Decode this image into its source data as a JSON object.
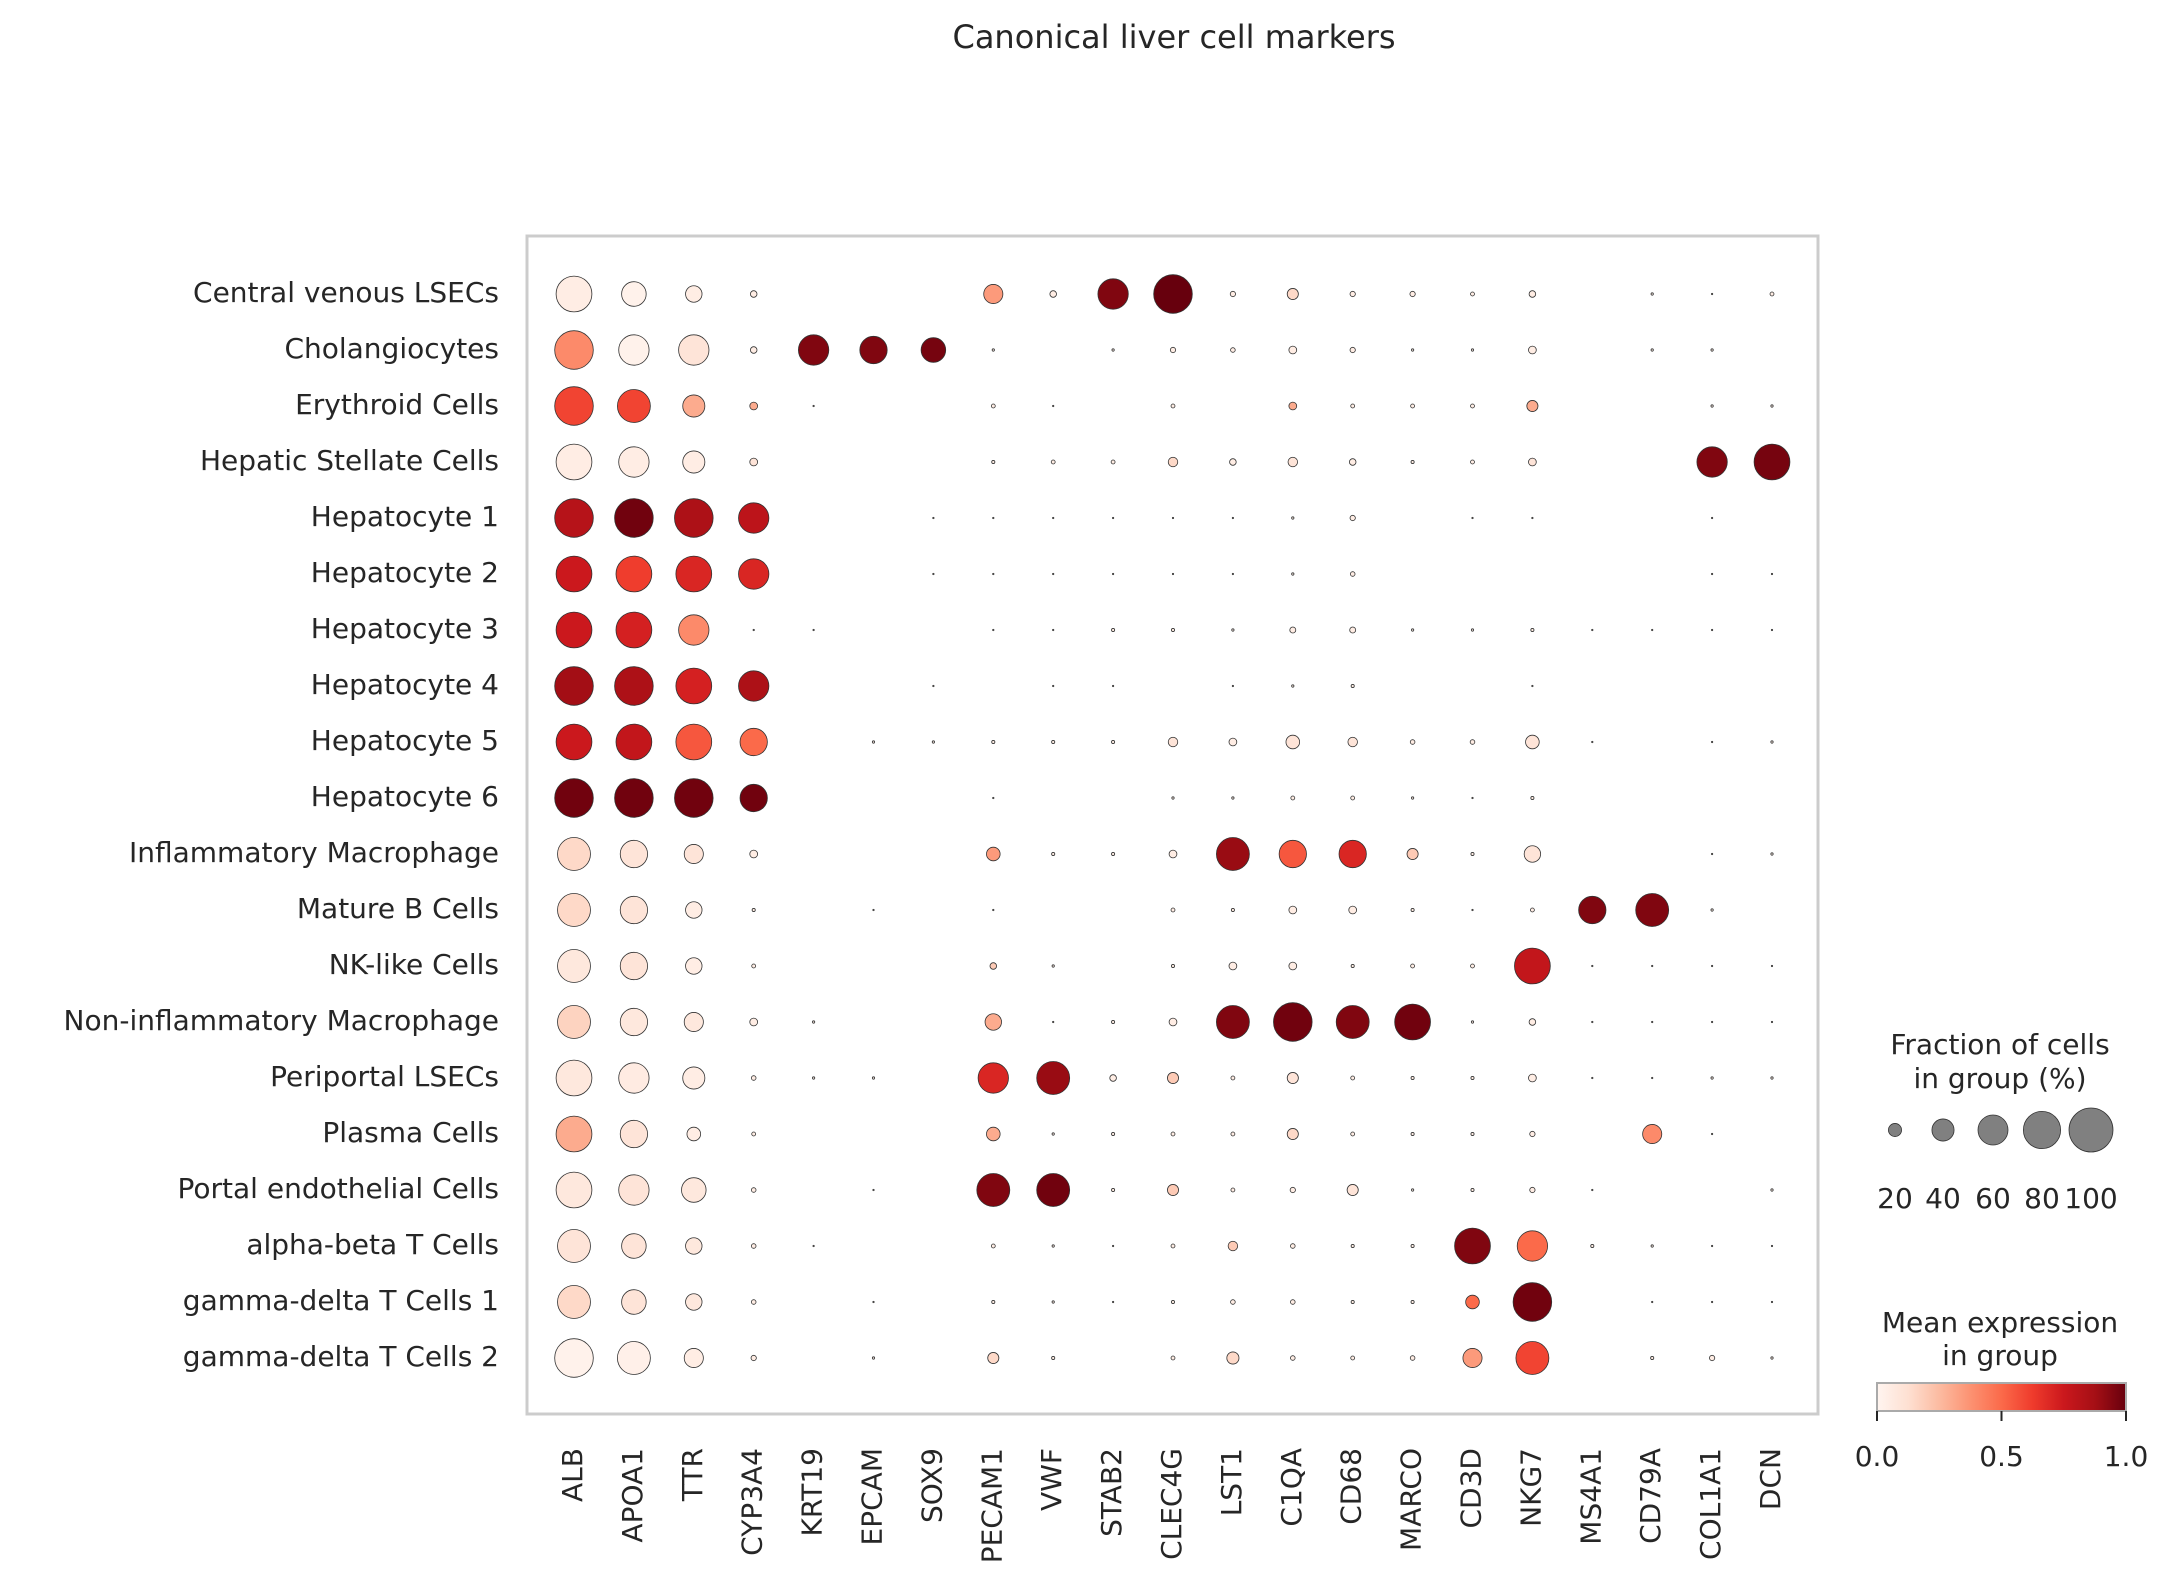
{
  "chart_data": {
    "type": "dot",
    "title": "Canonical liver cell markers",
    "genes": [
      "ALB",
      "APOA1",
      "TTR",
      "CYP3A4",
      "KRT19",
      "EPCAM",
      "SOX9",
      "PECAM1",
      "VWF",
      "STAB2",
      "CLEC4G",
      "LST1",
      "C1QA",
      "CD68",
      "MARCO",
      "CD3D",
      "NKG7",
      "MS4A1",
      "CD79A",
      "COL1A1",
      "DCN"
    ],
    "groups": [
      "Central venous LSECs",
      "Cholangiocytes",
      "Erythroid Cells",
      "Hepatic Stellate Cells",
      "Hepatocyte 1",
      "Hepatocyte 2",
      "Hepatocyte 3",
      "Hepatocyte 4",
      "Hepatocyte 5",
      "Hepatocyte 6",
      "Inflammatory Macrophage",
      "Mature B Cells",
      "NK-like Cells",
      "Non-inflammatory Macrophage",
      "Periportal LSECs",
      "Plasma Cells",
      "Portal endothelial Cells",
      "alpha-beta T Cells",
      "gamma-delta T Cells 1",
      "gamma-delta T Cells 2"
    ],
    "fraction": [
      [
        76,
        46,
        27,
        8,
        0,
        0,
        0,
        33,
        8,
        61,
        84,
        6,
        16,
        6,
        6,
        4,
        8,
        0,
        2,
        1,
        4
      ],
      [
        84,
        61,
        61,
        8,
        61,
        53,
        46,
        2,
        0,
        2,
        6,
        5,
        10,
        6,
        2,
        2,
        10,
        0,
        2,
        2,
        0
      ],
      [
        84,
        68,
        40,
        10,
        1,
        0,
        0,
        4,
        1,
        0,
        4,
        0,
        10,
        4,
        4,
        4,
        16,
        0,
        0,
        2,
        2
      ],
      [
        76,
        61,
        40,
        10,
        0,
        0,
        0,
        3,
        4,
        4,
        13,
        8,
        13,
        8,
        3,
        4,
        10,
        0,
        0,
        61,
        76
      ],
      [
        84,
        84,
        84,
        61,
        0,
        0,
        1,
        1,
        1,
        1,
        1,
        1,
        2,
        6,
        0,
        1,
        1,
        0,
        0,
        1,
        0
      ],
      [
        76,
        76,
        76,
        61,
        0,
        0,
        1,
        1,
        1,
        1,
        1,
        1,
        2,
        5,
        0,
        0,
        0,
        0,
        0,
        1,
        1
      ],
      [
        76,
        76,
        61,
        1,
        1,
        0,
        0,
        1,
        1,
        3,
        3,
        2,
        7,
        7,
        2,
        2,
        3,
        1,
        1,
        1,
        1
      ],
      [
        84,
        84,
        76,
        61,
        0,
        0,
        1,
        0,
        1,
        1,
        0,
        1,
        2,
        3,
        0,
        0,
        1,
        0,
        0,
        0,
        0
      ],
      [
        76,
        76,
        76,
        53,
        0,
        2,
        2,
        3,
        3,
        3,
        13,
        10,
        21,
        13,
        5,
        5,
        21,
        1,
        0,
        1,
        2
      ],
      [
        84,
        84,
        84,
        53,
        0,
        0,
        0,
        1,
        0,
        0,
        2,
        2,
        4,
        4,
        2,
        1,
        3,
        0,
        0,
        0,
        0
      ],
      [
        68,
        53,
        33,
        10,
        0,
        0,
        0,
        21,
        3,
        3,
        10,
        68,
        53,
        53,
        16,
        3,
        27,
        0,
        0,
        1,
        2
      ],
      [
        68,
        53,
        27,
        3,
        0,
        1,
        0,
        1,
        0,
        0,
        4,
        3,
        10,
        10,
        3,
        1,
        4,
        53,
        68,
        2,
        0
      ],
      [
        68,
        53,
        27,
        4,
        0,
        0,
        0,
        8,
        2,
        0,
        3,
        10,
        10,
        3,
        4,
        4,
        76,
        1,
        1,
        1,
        1
      ],
      [
        68,
        53,
        33,
        10,
        2,
        0,
        0,
        27,
        1,
        3,
        10,
        68,
        84,
        68,
        76,
        2,
        8,
        1,
        1,
        1,
        1
      ],
      [
        76,
        61,
        40,
        5,
        2,
        2,
        0,
        61,
        68,
        8,
        16,
        4,
        16,
        4,
        3,
        3,
        10,
        1,
        1,
        2,
        2
      ],
      [
        76,
        53,
        21,
        4,
        0,
        0,
        0,
        21,
        2,
        3,
        4,
        4,
        16,
        4,
        3,
        3,
        6,
        0,
        33,
        1,
        0
      ],
      [
        76,
        61,
        46,
        5,
        0,
        1,
        0,
        68,
        68,
        3,
        16,
        4,
        6,
        16,
        2,
        3,
        6,
        1,
        0,
        0,
        2
      ],
      [
        68,
        46,
        27,
        5,
        1,
        0,
        0,
        4,
        2,
        1,
        4,
        13,
        5,
        3,
        3,
        76,
        61,
        3,
        2,
        1,
        1
      ],
      [
        68,
        46,
        27,
        5,
        0,
        1,
        0,
        3,
        2,
        1,
        3,
        5,
        5,
        3,
        3,
        21,
        84,
        0,
        1,
        1,
        1
      ],
      [
        84,
        68,
        33,
        6,
        0,
        2,
        0,
        16,
        3,
        0,
        4,
        18,
        5,
        4,
        5,
        33,
        68,
        0,
        3,
        6,
        2
      ]
    ],
    "expression": [
      [
        0.05,
        0.02,
        0.05,
        0.05,
        0,
        0,
        0,
        0.35,
        0.05,
        0.95,
        1,
        0.05,
        0.15,
        0.05,
        0.05,
        0.05,
        0.05,
        0,
        0.05,
        0.05,
        0.05
      ],
      [
        0.4,
        0.02,
        0.1,
        0.05,
        0.95,
        0.95,
        0.97,
        0.05,
        0,
        0.05,
        0.05,
        0.05,
        0.05,
        0.05,
        0.05,
        0.05,
        0.05,
        0,
        0.05,
        0.05,
        0
      ],
      [
        0.6,
        0.6,
        0.3,
        0.3,
        0.05,
        0,
        0,
        0.05,
        0.05,
        0,
        0.05,
        0,
        0.3,
        0.05,
        0.05,
        0.05,
        0.3,
        0,
        0,
        0.05,
        0.05
      ],
      [
        0.05,
        0.05,
        0.05,
        0.1,
        0,
        0,
        0,
        0.05,
        0.05,
        0.05,
        0.15,
        0.05,
        0.1,
        0.05,
        0.05,
        0.05,
        0.1,
        0,
        0,
        0.95,
        0.97
      ],
      [
        0.82,
        0.98,
        0.85,
        0.8,
        0,
        0,
        0.05,
        0.05,
        0.05,
        0.05,
        0.05,
        0.05,
        0.05,
        0.05,
        0,
        0.05,
        0.05,
        0,
        0,
        0.05,
        0
      ],
      [
        0.75,
        0.62,
        0.7,
        0.7,
        0,
        0,
        0.05,
        0.05,
        0.05,
        0.05,
        0.05,
        0.05,
        0.05,
        0.05,
        0,
        0,
        0,
        0,
        0,
        0.05,
        0.05
      ],
      [
        0.75,
        0.72,
        0.4,
        0.05,
        0.05,
        0,
        0,
        0.05,
        0.05,
        0.05,
        0.05,
        0.05,
        0.05,
        0.05,
        0.05,
        0.05,
        0.05,
        0.05,
        0.05,
        0.05,
        0.05
      ],
      [
        0.88,
        0.85,
        0.72,
        0.85,
        0,
        0,
        0.05,
        0,
        0.05,
        0.05,
        0,
        0.05,
        0.05,
        0.05,
        0,
        0,
        0.05,
        0,
        0,
        0,
        0
      ],
      [
        0.75,
        0.78,
        0.55,
        0.5,
        0,
        0.05,
        0.05,
        0.05,
        0.05,
        0.05,
        0.1,
        0.05,
        0.1,
        0.1,
        0.05,
        0.05,
        0.1,
        0.05,
        0,
        0.05,
        0.05
      ],
      [
        0.98,
        0.98,
        0.98,
        0.98,
        0,
        0,
        0,
        0.05,
        0,
        0,
        0.05,
        0.05,
        0.05,
        0.05,
        0.05,
        0.05,
        0.05,
        0,
        0,
        0,
        0
      ],
      [
        0.15,
        0.1,
        0.1,
        0.05,
        0,
        0,
        0,
        0.35,
        0.05,
        0.05,
        0.05,
        0.9,
        0.55,
        0.7,
        0.2,
        0.05,
        0.1,
        0,
        0,
        0.05,
        0.05
      ],
      [
        0.15,
        0.1,
        0.05,
        0.05,
        0,
        0.05,
        0,
        0.05,
        0,
        0,
        0.05,
        0.05,
        0.05,
        0.05,
        0.05,
        0.05,
        0.05,
        0.95,
        0.95,
        0.05,
        0
      ],
      [
        0.08,
        0.1,
        0.05,
        0.05,
        0,
        0,
        0,
        0.2,
        0.05,
        0,
        0.05,
        0.05,
        0.05,
        0.05,
        0.05,
        0.05,
        0.78,
        0.05,
        0.05,
        0.05,
        0.05
      ],
      [
        0.17,
        0.08,
        0.08,
        0.05,
        0.05,
        0,
        0,
        0.3,
        0.05,
        0.05,
        0.05,
        0.95,
        0.98,
        0.95,
        0.98,
        0.05,
        0.05,
        0.05,
        0.05,
        0.05,
        0.05
      ],
      [
        0.08,
        0.06,
        0.05,
        0.05,
        0.05,
        0.05,
        0,
        0.7,
        0.9,
        0.05,
        0.2,
        0.05,
        0.1,
        0.05,
        0.05,
        0.05,
        0.05,
        0.05,
        0.05,
        0.05,
        0.05
      ],
      [
        0.3,
        0.1,
        0.05,
        0.05,
        0,
        0,
        0,
        0.3,
        0.05,
        0.05,
        0.05,
        0.05,
        0.15,
        0.05,
        0.05,
        0.05,
        0.05,
        0,
        0.4,
        0.05,
        0
      ],
      [
        0.08,
        0.1,
        0.08,
        0.05,
        0,
        0.05,
        0,
        0.95,
        0.98,
        0.05,
        0.2,
        0.05,
        0.05,
        0.1,
        0.05,
        0.05,
        0.05,
        0.05,
        0,
        0,
        0.05
      ],
      [
        0.1,
        0.1,
        0.08,
        0.05,
        0.05,
        0,
        0,
        0.05,
        0.05,
        0.05,
        0.05,
        0.2,
        0.05,
        0.05,
        0.05,
        0.95,
        0.5,
        0.05,
        0.05,
        0.05,
        0.05
      ],
      [
        0.15,
        0.1,
        0.08,
        0.05,
        0,
        0.05,
        0,
        0.05,
        0.05,
        0.05,
        0.05,
        0.05,
        0.05,
        0.05,
        0.05,
        0.5,
        0.98,
        0,
        0.05,
        0.05,
        0.05
      ],
      [
        0.02,
        0.03,
        0.05,
        0.05,
        0,
        0.05,
        0,
        0.15,
        0.05,
        0,
        0.05,
        0.15,
        0.05,
        0.05,
        0.05,
        0.35,
        0.6,
        0,
        0.05,
        0.05,
        0.05
      ]
    ],
    "colormap": [
      "#fff5f0",
      "#fee0d2",
      "#fcbba1",
      "#fc9272",
      "#fb6a4a",
      "#ef3b2c",
      "#cb181d",
      "#a50f15",
      "#67000d"
    ],
    "size_legend_title": [
      "Fraction of cells",
      "in group (%)"
    ],
    "size_ticks": [
      20,
      40,
      60,
      80,
      100
    ],
    "color_legend_title": [
      "Mean expression",
      "in group"
    ],
    "colorlim": [
      0,
      1
    ],
    "color_ticks": [
      {
        "value": 0,
        "label": "0.0"
      },
      0.5,
      {
        "value": 1,
        "label": "1.0"
      }
    ]
  }
}
